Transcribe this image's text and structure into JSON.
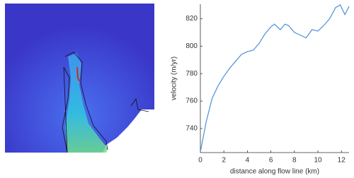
{
  "chart_data": {
    "type": "line",
    "xlabel": "distance along flow line (km)",
    "ylabel": "velocity (m/yr)",
    "x": [
      0,
      0.5,
      1,
      1.5,
      2,
      2.5,
      3,
      3.5,
      4,
      4.5,
      5,
      5.5,
      6,
      6.3,
      6.8,
      7.2,
      7.5,
      8,
      8.5,
      9,
      9.5,
      10,
      10.5,
      11,
      11.5,
      11.9,
      12.3,
      12.65
    ],
    "values": [
      723,
      745,
      762,
      771,
      778,
      784,
      789,
      794,
      796,
      797,
      802,
      809,
      814,
      816,
      812,
      816,
      815,
      810,
      808,
      806,
      812,
      811,
      815,
      820,
      828,
      830,
      823,
      829
    ],
    "color": "#4a90d9",
    "xlim": [
      0,
      12.65
    ],
    "ylim": [
      722.5,
      830.5
    ],
    "xticks": [
      0,
      2,
      4,
      6,
      8,
      10,
      12
    ],
    "yticks": [
      740,
      760,
      780,
      800,
      820
    ]
  }
}
